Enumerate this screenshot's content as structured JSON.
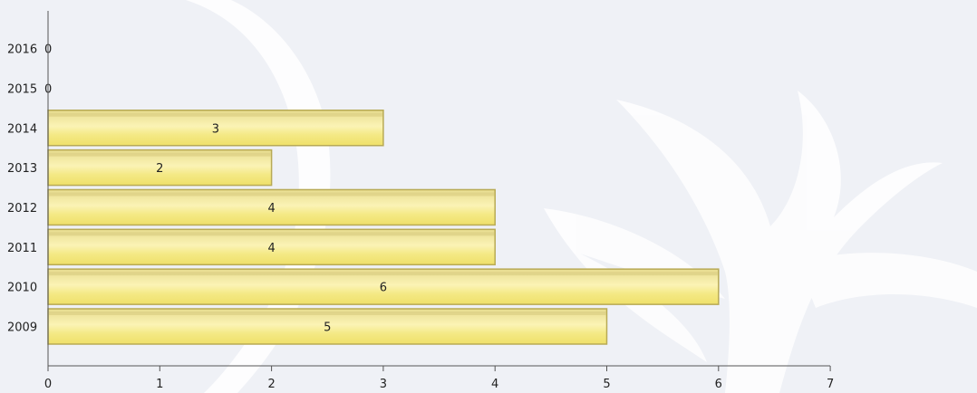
{
  "chart_data": {
    "type": "bar",
    "orientation": "horizontal",
    "categories": [
      "2009",
      "2010",
      "2011",
      "2012",
      "2013",
      "2014",
      "2015",
      "2016"
    ],
    "values": [
      5,
      6,
      4,
      4,
      2,
      3,
      0,
      0
    ],
    "data_labels": [
      "5",
      "6",
      "4",
      "4",
      "2",
      "3",
      "0",
      "0"
    ],
    "x_ticks": [
      0,
      1,
      2,
      3,
      4,
      5,
      6,
      7
    ],
    "xlim": [
      0,
      7
    ],
    "grid": false,
    "bar_color": "#f2e27a",
    "bar_edge_color": "#b8aa55"
  },
  "background": {
    "color": "#eff1f6",
    "watermark_color": "#ffffff"
  }
}
